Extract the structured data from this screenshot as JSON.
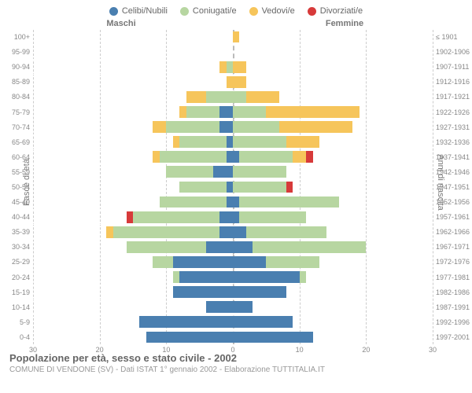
{
  "legend": [
    {
      "label": "Celibi/Nubili",
      "color": "#4a7fb0"
    },
    {
      "label": "Coniugati/e",
      "color": "#b7d6a1"
    },
    {
      "label": "Vedovi/e",
      "color": "#f6c55b"
    },
    {
      "label": "Divorziati/e",
      "color": "#d73a3a"
    }
  ],
  "header_left": "Maschi",
  "header_right": "Femmine",
  "y_label_left": "Fasce di età",
  "y_label_right": "Anni di nascita",
  "x_max": 30,
  "x_ticks": [
    0,
    10,
    20,
    30
  ],
  "age_groups": [
    {
      "age": "100+",
      "birth": "≤ 1901",
      "m": [
        0,
        0,
        0,
        0
      ],
      "f": [
        0,
        0,
        1,
        0
      ]
    },
    {
      "age": "95-99",
      "birth": "1902-1906",
      "m": [
        0,
        0,
        0,
        0
      ],
      "f": [
        0,
        0,
        0,
        0
      ]
    },
    {
      "age": "90-94",
      "birth": "1907-1911",
      "m": [
        0,
        1,
        1,
        0
      ],
      "f": [
        0,
        0,
        2,
        0
      ]
    },
    {
      "age": "85-89",
      "birth": "1912-1916",
      "m": [
        0,
        0,
        1,
        0
      ],
      "f": [
        0,
        0,
        2,
        0
      ]
    },
    {
      "age": "80-84",
      "birth": "1917-1921",
      "m": [
        0,
        4,
        3,
        0
      ],
      "f": [
        0,
        2,
        5,
        0
      ]
    },
    {
      "age": "75-79",
      "birth": "1922-1926",
      "m": [
        2,
        5,
        1,
        0
      ],
      "f": [
        0,
        5,
        14,
        0
      ]
    },
    {
      "age": "70-74",
      "birth": "1927-1931",
      "m": [
        2,
        8,
        2,
        0
      ],
      "f": [
        0,
        7,
        11,
        0
      ]
    },
    {
      "age": "65-69",
      "birth": "1932-1936",
      "m": [
        1,
        7,
        1,
        0
      ],
      "f": [
        0,
        8,
        5,
        0
      ]
    },
    {
      "age": "60-64",
      "birth": "1937-1941",
      "m": [
        1,
        10,
        1,
        0
      ],
      "f": [
        1,
        8,
        2,
        1
      ]
    },
    {
      "age": "55-59",
      "birth": "1942-1946",
      "m": [
        3,
        7,
        0,
        0
      ],
      "f": [
        0,
        8,
        0,
        0
      ]
    },
    {
      "age": "50-54",
      "birth": "1947-1951",
      "m": [
        1,
        7,
        0,
        0
      ],
      "f": [
        0,
        8,
        0,
        1
      ]
    },
    {
      "age": "45-49",
      "birth": "1952-1956",
      "m": [
        1,
        10,
        0,
        0
      ],
      "f": [
        1,
        15,
        0,
        0
      ]
    },
    {
      "age": "40-44",
      "birth": "1957-1961",
      "m": [
        2,
        13,
        0,
        1
      ],
      "f": [
        1,
        10,
        0,
        0
      ]
    },
    {
      "age": "35-39",
      "birth": "1962-1966",
      "m": [
        2,
        16,
        1,
        0
      ],
      "f": [
        2,
        12,
        0,
        0
      ]
    },
    {
      "age": "30-34",
      "birth": "1967-1971",
      "m": [
        4,
        12,
        0,
        0
      ],
      "f": [
        3,
        17,
        0,
        0
      ]
    },
    {
      "age": "25-29",
      "birth": "1972-1976",
      "m": [
        9,
        3,
        0,
        0
      ],
      "f": [
        5,
        8,
        0,
        0
      ]
    },
    {
      "age": "20-24",
      "birth": "1977-1981",
      "m": [
        8,
        1,
        0,
        0
      ],
      "f": [
        10,
        1,
        0,
        0
      ]
    },
    {
      "age": "15-19",
      "birth": "1982-1986",
      "m": [
        9,
        0,
        0,
        0
      ],
      "f": [
        8,
        0,
        0,
        0
      ]
    },
    {
      "age": "10-14",
      "birth": "1987-1991",
      "m": [
        4,
        0,
        0,
        0
      ],
      "f": [
        3,
        0,
        0,
        0
      ]
    },
    {
      "age": "5-9",
      "birth": "1992-1996",
      "m": [
        14,
        0,
        0,
        0
      ],
      "f": [
        9,
        0,
        0,
        0
      ]
    },
    {
      "age": "0-4",
      "birth": "1997-2001",
      "m": [
        13,
        0,
        0,
        0
      ],
      "f": [
        12,
        0,
        0,
        0
      ]
    }
  ],
  "title": "Popolazione per età, sesso e stato civile - 2002",
  "subtitle": "COMUNE DI VENDONE (SV) - Dati ISTAT 1° gennaio 2002 - Elaborazione TUTTITALIA.IT",
  "colors": [
    "#4a7fb0",
    "#b7d6a1",
    "#f6c55b",
    "#d73a3a"
  ],
  "grid_color": "#cccccc"
}
